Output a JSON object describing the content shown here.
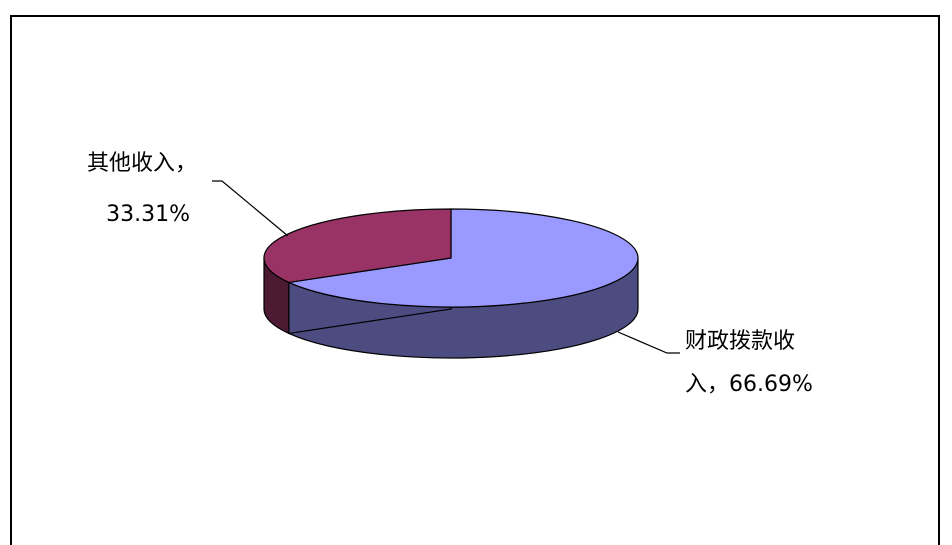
{
  "chart_data": {
    "type": "pie",
    "style": "3d",
    "title": "",
    "slices": [
      {
        "label_lines": [
          "财政拨款收",
          "入，66.69%"
        ],
        "category": "财政拨款收入",
        "value": 66.69,
        "unit": "%",
        "color": "#9999ff",
        "side_color": "#4d4c80"
      },
      {
        "label_lines": [
          "其他收入，",
          "33.31%"
        ],
        "category": "其他收入",
        "value": 33.31,
        "unit": "%",
        "color": "#993366",
        "side_color": "#4d1a33"
      }
    ],
    "legend": "none",
    "data_labels": "outside with leader lines"
  }
}
